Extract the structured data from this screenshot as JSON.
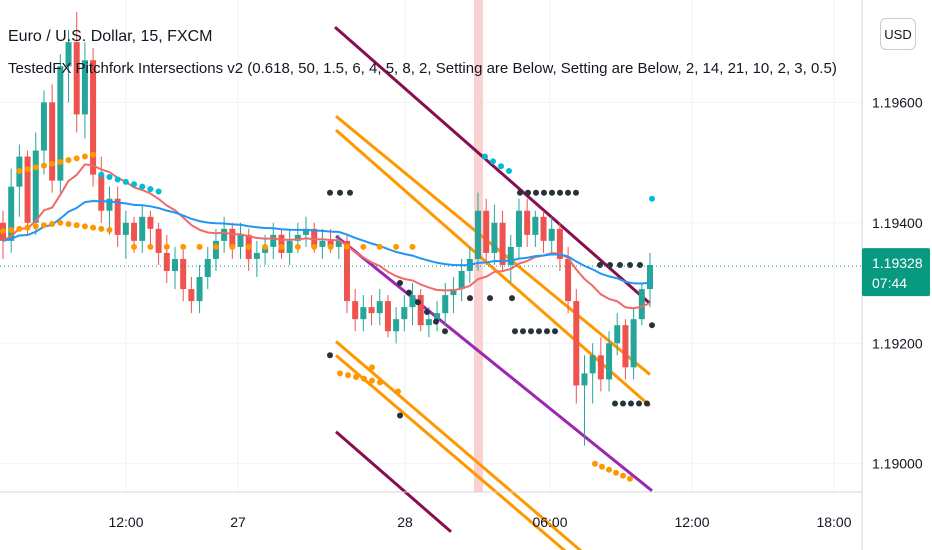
{
  "header": {
    "title": "Euro / U.S. Dollar, 15, FXCM",
    "indicator": "TestedFX Pitchfork Intersections v2 (0.618, 50, 1.5, 6, 4, 5, 8, 2, Setting are Below, Setting are Below, 2, 14, 21, 10, 2, 3, 0.5)",
    "currency": "USD"
  },
  "colors": {
    "bull": "#26a69a",
    "bear": "#ef5350",
    "ema_red": "#f06a6a",
    "ema_blue": "#2196f3",
    "orange": "#ff9800",
    "maroon": "#880e4f",
    "purple": "#9c27b0",
    "dot_black": "#263238",
    "cyan": "#00bcd4",
    "label": "#089981",
    "session": "#f7c6c6"
  },
  "chart_data": {
    "type": "candlestick",
    "price_axis": {
      "ylim": [
        1.1887,
        1.1976
      ],
      "ticks": [
        "1.19600",
        "1.19400",
        "1.19200",
        "1.19000"
      ]
    },
    "time_axis": {
      "ticks": [
        "12:00",
        "27",
        "28",
        "06:00",
        "12:00",
        "18:00"
      ]
    },
    "last_price": "1.19328",
    "countdown": "07:44",
    "candles": [
      [
        1.194,
        1.1942,
        1.1934,
        1.1937
      ],
      [
        1.1937,
        1.1949,
        1.1935,
        1.1946
      ],
      [
        1.1946,
        1.1953,
        1.1941,
        1.1951
      ],
      [
        1.1951,
        1.1952,
        1.1938,
        1.194
      ],
      [
        1.194,
        1.1955,
        1.1938,
        1.1952
      ],
      [
        1.1952,
        1.1962,
        1.1948,
        1.196
      ],
      [
        1.196,
        1.1963,
        1.1945,
        1.1947
      ],
      [
        1.1947,
        1.1968,
        1.1945,
        1.1966
      ],
      [
        1.1966,
        1.1972,
        1.196,
        1.197
      ],
      [
        1.197,
        1.1975,
        1.1955,
        1.1958
      ],
      [
        1.1958,
        1.197,
        1.1954,
        1.1967
      ],
      [
        1.1967,
        1.1969,
        1.1946,
        1.1948
      ],
      [
        1.1948,
        1.1951,
        1.194,
        1.1942
      ],
      [
        1.1942,
        1.1946,
        1.1938,
        1.1944
      ],
      [
        1.1944,
        1.1946,
        1.1936,
        1.1938
      ],
      [
        1.1938,
        1.1942,
        1.1934,
        1.194
      ],
      [
        1.194,
        1.1941,
        1.1935,
        1.1937
      ],
      [
        1.1937,
        1.1943,
        1.1935,
        1.1941
      ],
      [
        1.1941,
        1.1942,
        1.1936,
        1.1939
      ],
      [
        1.1939,
        1.194,
        1.1933,
        1.1935
      ],
      [
        1.1935,
        1.1938,
        1.193,
        1.1932
      ],
      [
        1.1932,
        1.1936,
        1.1929,
        1.1934
      ],
      [
        1.1934,
        1.1936,
        1.1927,
        1.1929
      ],
      [
        1.1929,
        1.1931,
        1.1925,
        1.1927
      ],
      [
        1.1927,
        1.1933,
        1.1925,
        1.1931
      ],
      [
        1.1931,
        1.1936,
        1.1929,
        1.1934
      ],
      [
        1.1934,
        1.1939,
        1.1932,
        1.1937
      ],
      [
        1.1937,
        1.1941,
        1.1935,
        1.1939
      ],
      [
        1.1939,
        1.194,
        1.1934,
        1.1936
      ],
      [
        1.1936,
        1.194,
        1.1934,
        1.1938
      ],
      [
        1.1938,
        1.1939,
        1.1932,
        1.1934
      ],
      [
        1.1934,
        1.1937,
        1.1931,
        1.1935
      ],
      [
        1.1935,
        1.1938,
        1.1933,
        1.1936
      ],
      [
        1.1936,
        1.194,
        1.1934,
        1.1938
      ],
      [
        1.1938,
        1.1939,
        1.1934,
        1.1935
      ],
      [
        1.1935,
        1.1939,
        1.1933,
        1.1937
      ],
      [
        1.1937,
        1.194,
        1.1935,
        1.1938
      ],
      [
        1.1938,
        1.1941,
        1.1936,
        1.1939
      ],
      [
        1.1939,
        1.194,
        1.1935,
        1.1936
      ],
      [
        1.1936,
        1.1939,
        1.1934,
        1.1937
      ],
      [
        1.1937,
        1.1939,
        1.1935,
        1.1936
      ],
      [
        1.1936,
        1.1938,
        1.1934,
        1.1937
      ],
      [
        1.1937,
        1.1938,
        1.1925,
        1.1927
      ],
      [
        1.1927,
        1.1929,
        1.1922,
        1.1924
      ],
      [
        1.1924,
        1.1928,
        1.1922,
        1.1926
      ],
      [
        1.1926,
        1.1928,
        1.1923,
        1.1925
      ],
      [
        1.1925,
        1.1929,
        1.1923,
        1.1927
      ],
      [
        1.1927,
        1.1928,
        1.1921,
        1.1922
      ],
      [
        1.1922,
        1.1926,
        1.192,
        1.1924
      ],
      [
        1.1924,
        1.1928,
        1.1922,
        1.1926
      ],
      [
        1.1926,
        1.193,
        1.1923,
        1.1928
      ],
      [
        1.1928,
        1.1929,
        1.1922,
        1.1923
      ],
      [
        1.1923,
        1.1926,
        1.1921,
        1.1924
      ],
      [
        1.1924,
        1.1927,
        1.1922,
        1.1925
      ],
      [
        1.1925,
        1.193,
        1.1923,
        1.1928
      ],
      [
        1.1928,
        1.1931,
        1.1925,
        1.1929
      ],
      [
        1.1929,
        1.1934,
        1.1927,
        1.1932
      ],
      [
        1.1932,
        1.1936,
        1.193,
        1.1934
      ],
      [
        1.1934,
        1.1945,
        1.1932,
        1.1942
      ],
      [
        1.1942,
        1.1944,
        1.1933,
        1.1935
      ],
      [
        1.1935,
        1.1943,
        1.1933,
        1.194
      ],
      [
        1.194,
        1.1942,
        1.1932,
        1.1933
      ],
      [
        1.1933,
        1.1938,
        1.193,
        1.1936
      ],
      [
        1.1936,
        1.1944,
        1.1934,
        1.1942
      ],
      [
        1.1942,
        1.1944,
        1.1936,
        1.1938
      ],
      [
        1.1938,
        1.1942,
        1.1936,
        1.1941
      ],
      [
        1.1941,
        1.1942,
        1.1935,
        1.1937
      ],
      [
        1.1937,
        1.1941,
        1.1935,
        1.1939
      ],
      [
        1.1939,
        1.194,
        1.1932,
        1.1934
      ],
      [
        1.1934,
        1.1936,
        1.1925,
        1.1927
      ],
      [
        1.1927,
        1.1929,
        1.191,
        1.1913
      ],
      [
        1.1913,
        1.1918,
        1.1903,
        1.1915
      ],
      [
        1.1915,
        1.192,
        1.191,
        1.1918
      ],
      [
        1.1918,
        1.1921,
        1.1912,
        1.1914
      ],
      [
        1.1914,
        1.1922,
        1.1912,
        1.192
      ],
      [
        1.192,
        1.1925,
        1.1918,
        1.1923
      ],
      [
        1.1923,
        1.1924,
        1.1914,
        1.1916
      ],
      [
        1.1916,
        1.1926,
        1.1914,
        1.1924
      ],
      [
        1.1924,
        1.193,
        1.1923,
        1.1929
      ],
      [
        1.1929,
        1.1935,
        1.1926,
        1.1933
      ]
    ],
    "series": [
      {
        "name": "",
        "color": "#f06a6a"
      },
      {
        "name": "",
        "color": "#2196f3"
      }
    ]
  }
}
